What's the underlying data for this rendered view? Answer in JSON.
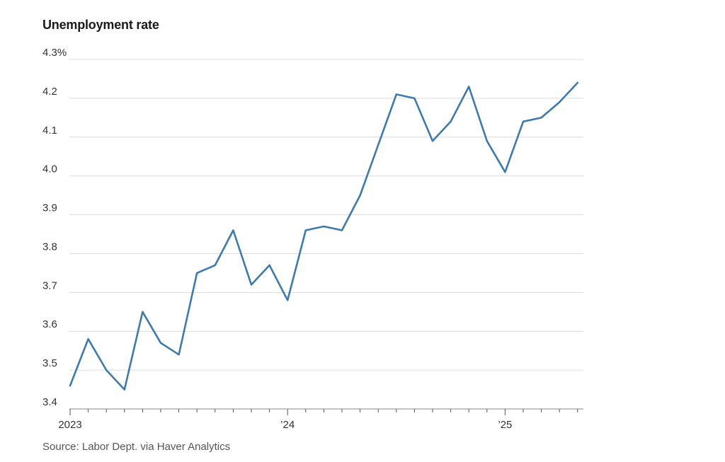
{
  "chart_data": {
    "type": "line",
    "title": "Unemployment rate",
    "xlabel": "",
    "ylabel": "",
    "y_unit_suffix": "%",
    "ylim": [
      3.4,
      4.3
    ],
    "yticks": [
      3.4,
      3.5,
      3.6,
      3.7,
      3.8,
      3.9,
      4.0,
      4.1,
      4.2,
      4.3
    ],
    "ytick_labels": [
      "3.4",
      "3.5",
      "3.6",
      "3.7",
      "3.8",
      "3.9",
      "4.0",
      "4.1",
      "4.2",
      "4.3%"
    ],
    "xticks_labeled": [
      {
        "x": "2023-01",
        "label": "2023"
      },
      {
        "x": "2024-01",
        "label": "’24"
      },
      {
        "x": "2025-01",
        "label": "’25"
      }
    ],
    "grid": true,
    "series_color": "#3e7aaa",
    "x": [
      "2023-01",
      "2023-02",
      "2023-03",
      "2023-04",
      "2023-05",
      "2023-06",
      "2023-07",
      "2023-08",
      "2023-09",
      "2023-10",
      "2023-11",
      "2023-12",
      "2024-01",
      "2024-02",
      "2024-03",
      "2024-04",
      "2024-05",
      "2024-06",
      "2024-07",
      "2024-08",
      "2024-09",
      "2024-10",
      "2024-11",
      "2024-12",
      "2025-01",
      "2025-02",
      "2025-03",
      "2025-04",
      "2025-05"
    ],
    "series": [
      {
        "values": [
          3.46,
          3.58,
          3.5,
          3.45,
          3.65,
          3.57,
          3.54,
          3.75,
          3.77,
          3.86,
          3.72,
          3.77,
          3.68,
          3.86,
          3.87,
          3.86,
          3.95,
          4.08,
          4.21,
          4.2,
          4.09,
          4.14,
          4.23,
          4.09,
          4.01,
          4.14,
          4.15,
          4.19,
          4.24
        ]
      }
    ]
  },
  "source": "Source: Labor Dept. via Haver Analytics"
}
